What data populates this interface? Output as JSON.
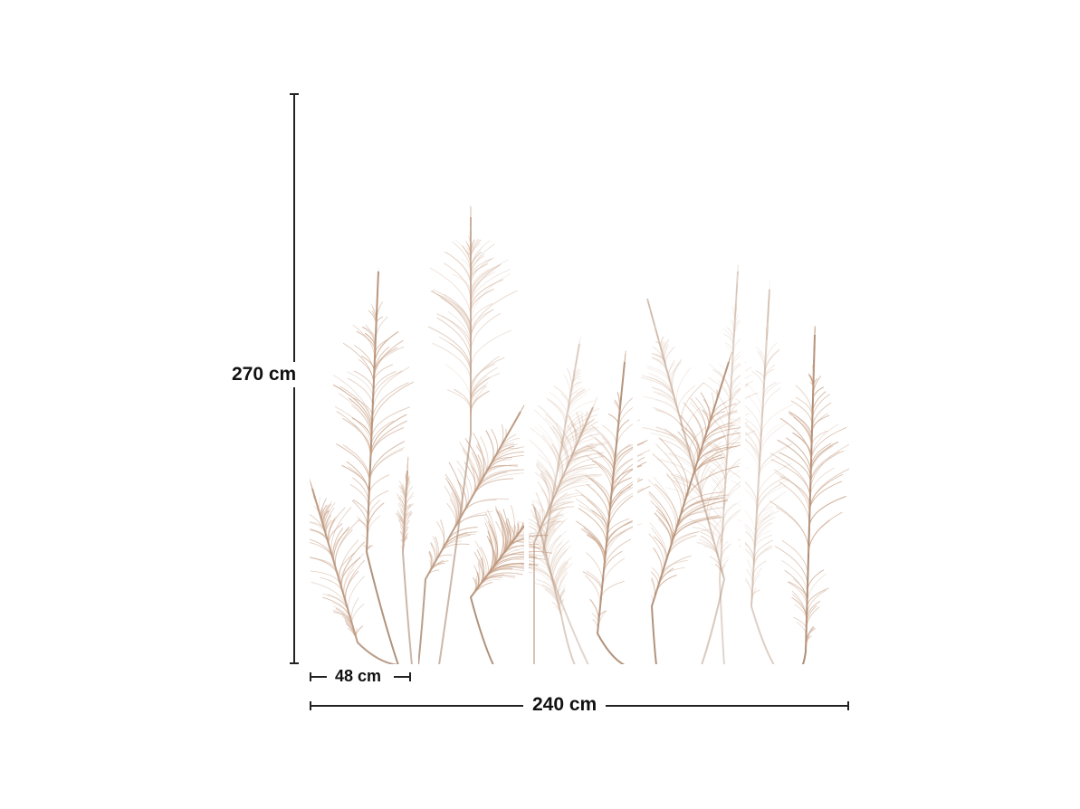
{
  "product": {
    "panels": 5,
    "plume_color": "#c49a7e",
    "stem_color": "#a9876f"
  },
  "dimensions": {
    "height_label": "270 cm",
    "panel_width_label": "48 cm",
    "total_width_label": "240 cm"
  }
}
